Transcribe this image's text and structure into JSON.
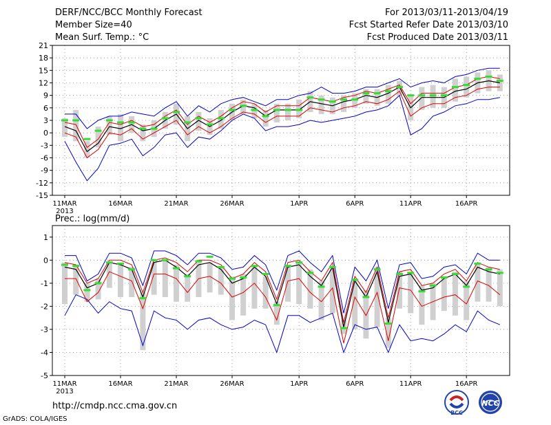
{
  "header": {
    "title": "DERF/NCC/BCC Monthly Forecast",
    "member_size": "Member Size=40",
    "variable": "Mean Surf. Temp.: °C",
    "period": "For 2013/03/11-2013/04/19",
    "start_date": "Fcst Started Refer Date 2013/03/10",
    "produced_date": "Fcst Produced Date 2013/03/11"
  },
  "footer": {
    "url": "http://cmdp.ncc.cma.gov.cn",
    "credit": "GrADS: COLA/IGES",
    "logo_left_text": "BCC",
    "logo_right_text": "NCC"
  },
  "colors": {
    "mean": "#000000",
    "spread_inner": "#dd0000",
    "spread_outer": "#0000cc",
    "box": "#d0d0d0",
    "marker": "#33dd33"
  },
  "chart_data": [
    {
      "type": "line",
      "title": "Mean Surf. Temp.: °C",
      "ylim": [
        -15,
        21
      ],
      "yticks": [
        -15,
        -12,
        -9,
        -6,
        -3,
        0,
        3,
        6,
        9,
        12,
        15,
        18,
        21
      ],
      "xlabels": [
        "11MAR",
        "16MAR",
        "21MAR",
        "26MAR",
        "1APR",
        "6APR",
        "11APR",
        "16APR"
      ],
      "year_label": "2013",
      "series": [
        {
          "name": "ensemble mean",
          "values": [
            1.5,
            0.5,
            -4.5,
            -2.5,
            1.5,
            1,
            2,
            0.5,
            1,
            3,
            4.5,
            1,
            3,
            1.5,
            3,
            5,
            6.5,
            6,
            4,
            5.5,
            5.5,
            5.5,
            7.5,
            7,
            6.5,
            7.5,
            8,
            9,
            8.5,
            9.5,
            11,
            6,
            8.5,
            8.5,
            8.5,
            10,
            10.5,
            12,
            12.5,
            12
          ]
        },
        {
          "name": "upper red",
          "values": [
            2.5,
            2,
            -3.5,
            -1.5,
            2.5,
            2,
            3,
            1.5,
            2,
            4,
            5.5,
            2,
            4,
            2.5,
            4,
            6,
            7.5,
            7,
            5,
            6.5,
            6.5,
            6.5,
            8.5,
            8,
            7.5,
            8.5,
            9,
            10,
            9.5,
            10.5,
            11.5,
            7,
            9.5,
            9.5,
            9.5,
            11,
            11.5,
            13,
            13.5,
            13
          ]
        },
        {
          "name": "lower red",
          "values": [
            0,
            -1,
            -6,
            -4,
            0,
            -0.5,
            1,
            -1.5,
            0,
            1.5,
            3,
            -0.5,
            1.5,
            0,
            1.5,
            3.5,
            5,
            4.5,
            2.5,
            4,
            4,
            4,
            6,
            5.5,
            5,
            6,
            6.5,
            7.5,
            7,
            8,
            10,
            4,
            6,
            7,
            7,
            8.5,
            9,
            10.5,
            11,
            11
          ]
        },
        {
          "name": "upper blue",
          "values": [
            4.5,
            4.5,
            1,
            3,
            4,
            4,
            5,
            4.5,
            4,
            6,
            7.5,
            4,
            6.5,
            5,
            7,
            8,
            8.5,
            7.5,
            6.5,
            8,
            8,
            9,
            9.5,
            11,
            9.5,
            9.5,
            10,
            11,
            11,
            12,
            13,
            11,
            12,
            12.5,
            12,
            13.5,
            14,
            15,
            15.5,
            15.5
          ]
        },
        {
          "name": "lower blue",
          "values": [
            -2,
            -7,
            -11.5,
            -8.5,
            -3,
            -2.5,
            -1.5,
            -5.5,
            -3.5,
            -0.5,
            0,
            -3.5,
            -1,
            -1.5,
            0.5,
            3,
            4.5,
            3.5,
            0.5,
            1.5,
            1.5,
            2,
            3,
            2.5,
            3,
            3.5,
            4,
            5,
            5.5,
            6.5,
            9,
            -0.5,
            1,
            4,
            5,
            6.5,
            7,
            8,
            8,
            8.5
          ]
        },
        {
          "name": "box top",
          "values": [
            3.5,
            5.5,
            -2,
            1.5,
            4,
            4.5,
            4,
            2,
            3,
            5,
            7,
            4,
            5,
            3.5,
            5.5,
            7,
            8,
            7,
            5.5,
            7,
            7,
            8,
            10,
            9,
            8.5,
            9,
            9.5,
            10.5,
            10.5,
            11.5,
            12.5,
            9,
            11,
            11.5,
            11,
            13,
            13.5,
            14.5,
            15,
            14
          ]
        },
        {
          "name": "box bottom",
          "values": [
            -1,
            -2,
            -6,
            -3.5,
            -0.5,
            -2,
            0,
            -2,
            -1,
            1,
            2,
            -2,
            0.5,
            -0.5,
            1,
            3,
            4.5,
            3.5,
            1.5,
            2.5,
            3,
            3.5,
            5,
            4.5,
            4.5,
            5,
            6,
            7,
            6.5,
            7,
            9,
            3,
            5.5,
            6,
            6,
            7.5,
            8.5,
            9.5,
            10,
            10
          ]
        },
        {
          "name": "marker",
          "values": [
            3,
            3,
            -1.5,
            0.5,
            3,
            2.5,
            2.5,
            1,
            1,
            3.5,
            5,
            2.5,
            3.5,
            2,
            3.5,
            5.5,
            6.5,
            5.5,
            4,
            5.5,
            5.5,
            5.5,
            8.5,
            8,
            7.5,
            8,
            8,
            9.5,
            9.5,
            10,
            11,
            9,
            9,
            9,
            9,
            11,
            11.5,
            13,
            13.5,
            12.5
          ]
        }
      ]
    },
    {
      "type": "line",
      "title": "Prec.: log(mm/d)",
      "ylim": [
        -5,
        1.5
      ],
      "yticks": [
        -5,
        -4,
        -3,
        -2,
        -1,
        0,
        1
      ],
      "xlabels": [
        "11MAR",
        "16MAR",
        "21MAR",
        "26MAR",
        "1APR",
        "6APR",
        "11APR",
        "16APR"
      ],
      "year_label": "2013",
      "series": [
        {
          "name": "ensemble mean",
          "values": [
            -0.3,
            -0.4,
            -1.2,
            -1,
            -0.1,
            -0.2,
            -0.4,
            -1.6,
            -0.1,
            0,
            -0.3,
            -0.7,
            -0.2,
            -0.1,
            -0.4,
            -1,
            -0.8,
            -0.3,
            -0.7,
            -1.9,
            -0.3,
            -0.2,
            -0.7,
            -1.1,
            -0.3,
            -2.9,
            -0.9,
            -1.6,
            -0.5,
            -2.7,
            -0.7,
            -0.6,
            -1.3,
            -1.2,
            -0.8,
            -0.6,
            -1.1,
            -0.3,
            -0.5,
            -0.6
          ]
        },
        {
          "name": "upper red",
          "values": [
            -0.1,
            -0.2,
            -1,
            -0.8,
            0,
            0,
            -0.2,
            -1.4,
            0,
            0.1,
            -0.1,
            -0.5,
            0,
            0,
            -0.2,
            -0.8,
            -0.6,
            -0.1,
            -0.5,
            -1.7,
            -0.1,
            0,
            -0.5,
            -0.9,
            -0.1,
            -2.7,
            -0.7,
            -1.4,
            -0.3,
            -2.5,
            -0.5,
            -0.4,
            -1.1,
            -1,
            -0.6,
            -0.4,
            -0.9,
            -0.1,
            -0.3,
            -0.4
          ]
        },
        {
          "name": "lower red",
          "values": [
            -0.8,
            -0.8,
            -1.8,
            -1.4,
            -0.5,
            -0.7,
            -0.9,
            -2.1,
            -0.6,
            -0.6,
            -0.8,
            -1.4,
            -0.8,
            -0.7,
            -1,
            -1.6,
            -1.4,
            -1,
            -1.6,
            -2.6,
            -0.9,
            -0.8,
            -1.4,
            -1.8,
            -1.2,
            -3.6,
            -1.6,
            -2.4,
            -1.4,
            -3.5,
            -1.2,
            -1.3,
            -2,
            -1.8,
            -1.6,
            -1.5,
            -1.9,
            -0.9,
            -1.1,
            -1.5
          ]
        },
        {
          "name": "upper blue",
          "values": [
            0.2,
            0.2,
            -0.9,
            -0.6,
            0.3,
            0.3,
            0.1,
            -1.1,
            0.4,
            0.4,
            0.2,
            -0.2,
            0.3,
            0.3,
            0.1,
            -0.4,
            -0.3,
            0.2,
            -0.2,
            -1.3,
            0.2,
            0.4,
            -0.1,
            -0.5,
            0.2,
            -2.3,
            -0.3,
            -0.9,
            0,
            -2.1,
            -0.2,
            -0.1,
            -0.8,
            -0.7,
            -0.3,
            -0.2,
            -0.6,
            0.3,
            0,
            0
          ]
        },
        {
          "name": "lower blue",
          "values": [
            -2.4,
            -1.5,
            -1.7,
            -2.3,
            -1.8,
            -2.1,
            -2.2,
            -3.7,
            -2.2,
            -2.5,
            -2.6,
            -3,
            -2.6,
            -2.5,
            -2.8,
            -3,
            -2.9,
            -2.6,
            -2.8,
            -4,
            -2.4,
            -2.4,
            -2.7,
            -2.5,
            -2.3,
            -4,
            -2.8,
            -3,
            -2.9,
            -4,
            -2.8,
            -3.5,
            -3.4,
            -3.5,
            -3.2,
            -2.8,
            -3.1,
            -2.2,
            -2.6,
            -2.8
          ]
        },
        {
          "name": "box top",
          "values": [
            -0.1,
            -0.2,
            -1,
            -0.8,
            -0.1,
            -0.2,
            -0.3,
            -1.4,
            -0.1,
            0,
            -0.2,
            -0.6,
            -0.1,
            -0.1,
            -0.3,
            -0.7,
            -0.6,
            -0.3,
            -0.7,
            -1.8,
            -0.2,
            -0.1,
            -0.4,
            -0.9,
            -0.3,
            -2.6,
            -0.8,
            -1.3,
            -0.3,
            -2.5,
            -0.5,
            -0.6,
            -1.1,
            -1,
            -0.7,
            -0.5,
            -0.9,
            -0.1,
            -0.3,
            -0.4
          ]
        },
        {
          "name": "box bottom",
          "values": [
            -1.9,
            -1.5,
            -1.8,
            -1.7,
            -1.2,
            -1.6,
            -1.6,
            -3.9,
            -1.5,
            -1.6,
            -1.8,
            -1.8,
            -1.6,
            -1.4,
            -1.5,
            -2.6,
            -2.4,
            -2.1,
            -2.1,
            -2.8,
            -1.8,
            -1.9,
            -2.1,
            -2.6,
            -2.3,
            -3.2,
            -3,
            -3.4,
            -2.9,
            -3.8,
            -2.1,
            -2.3,
            -2.8,
            -2.6,
            -2.2,
            -2.4,
            -2.6,
            -1.8,
            -1.8,
            -2
          ]
        },
        {
          "name": "marker",
          "values": [
            -0.2,
            -0.25,
            -1.3,
            -1,
            -0.1,
            -0.15,
            -0.4,
            -1.65,
            0,
            0,
            -0.35,
            -0.7,
            -0.05,
            0.15,
            -0.3,
            -0.8,
            -0.75,
            -0.25,
            -0.6,
            -1.95,
            -0.25,
            -0.1,
            -0.55,
            -1.15,
            -0.3,
            -2.95,
            -0.85,
            -1.6,
            -0.4,
            -2.75,
            -0.6,
            -0.55,
            -1.35,
            -1.1,
            -0.75,
            -0.6,
            -1.15,
            -0.15,
            -0.4,
            -0.55
          ]
        }
      ]
    }
  ]
}
